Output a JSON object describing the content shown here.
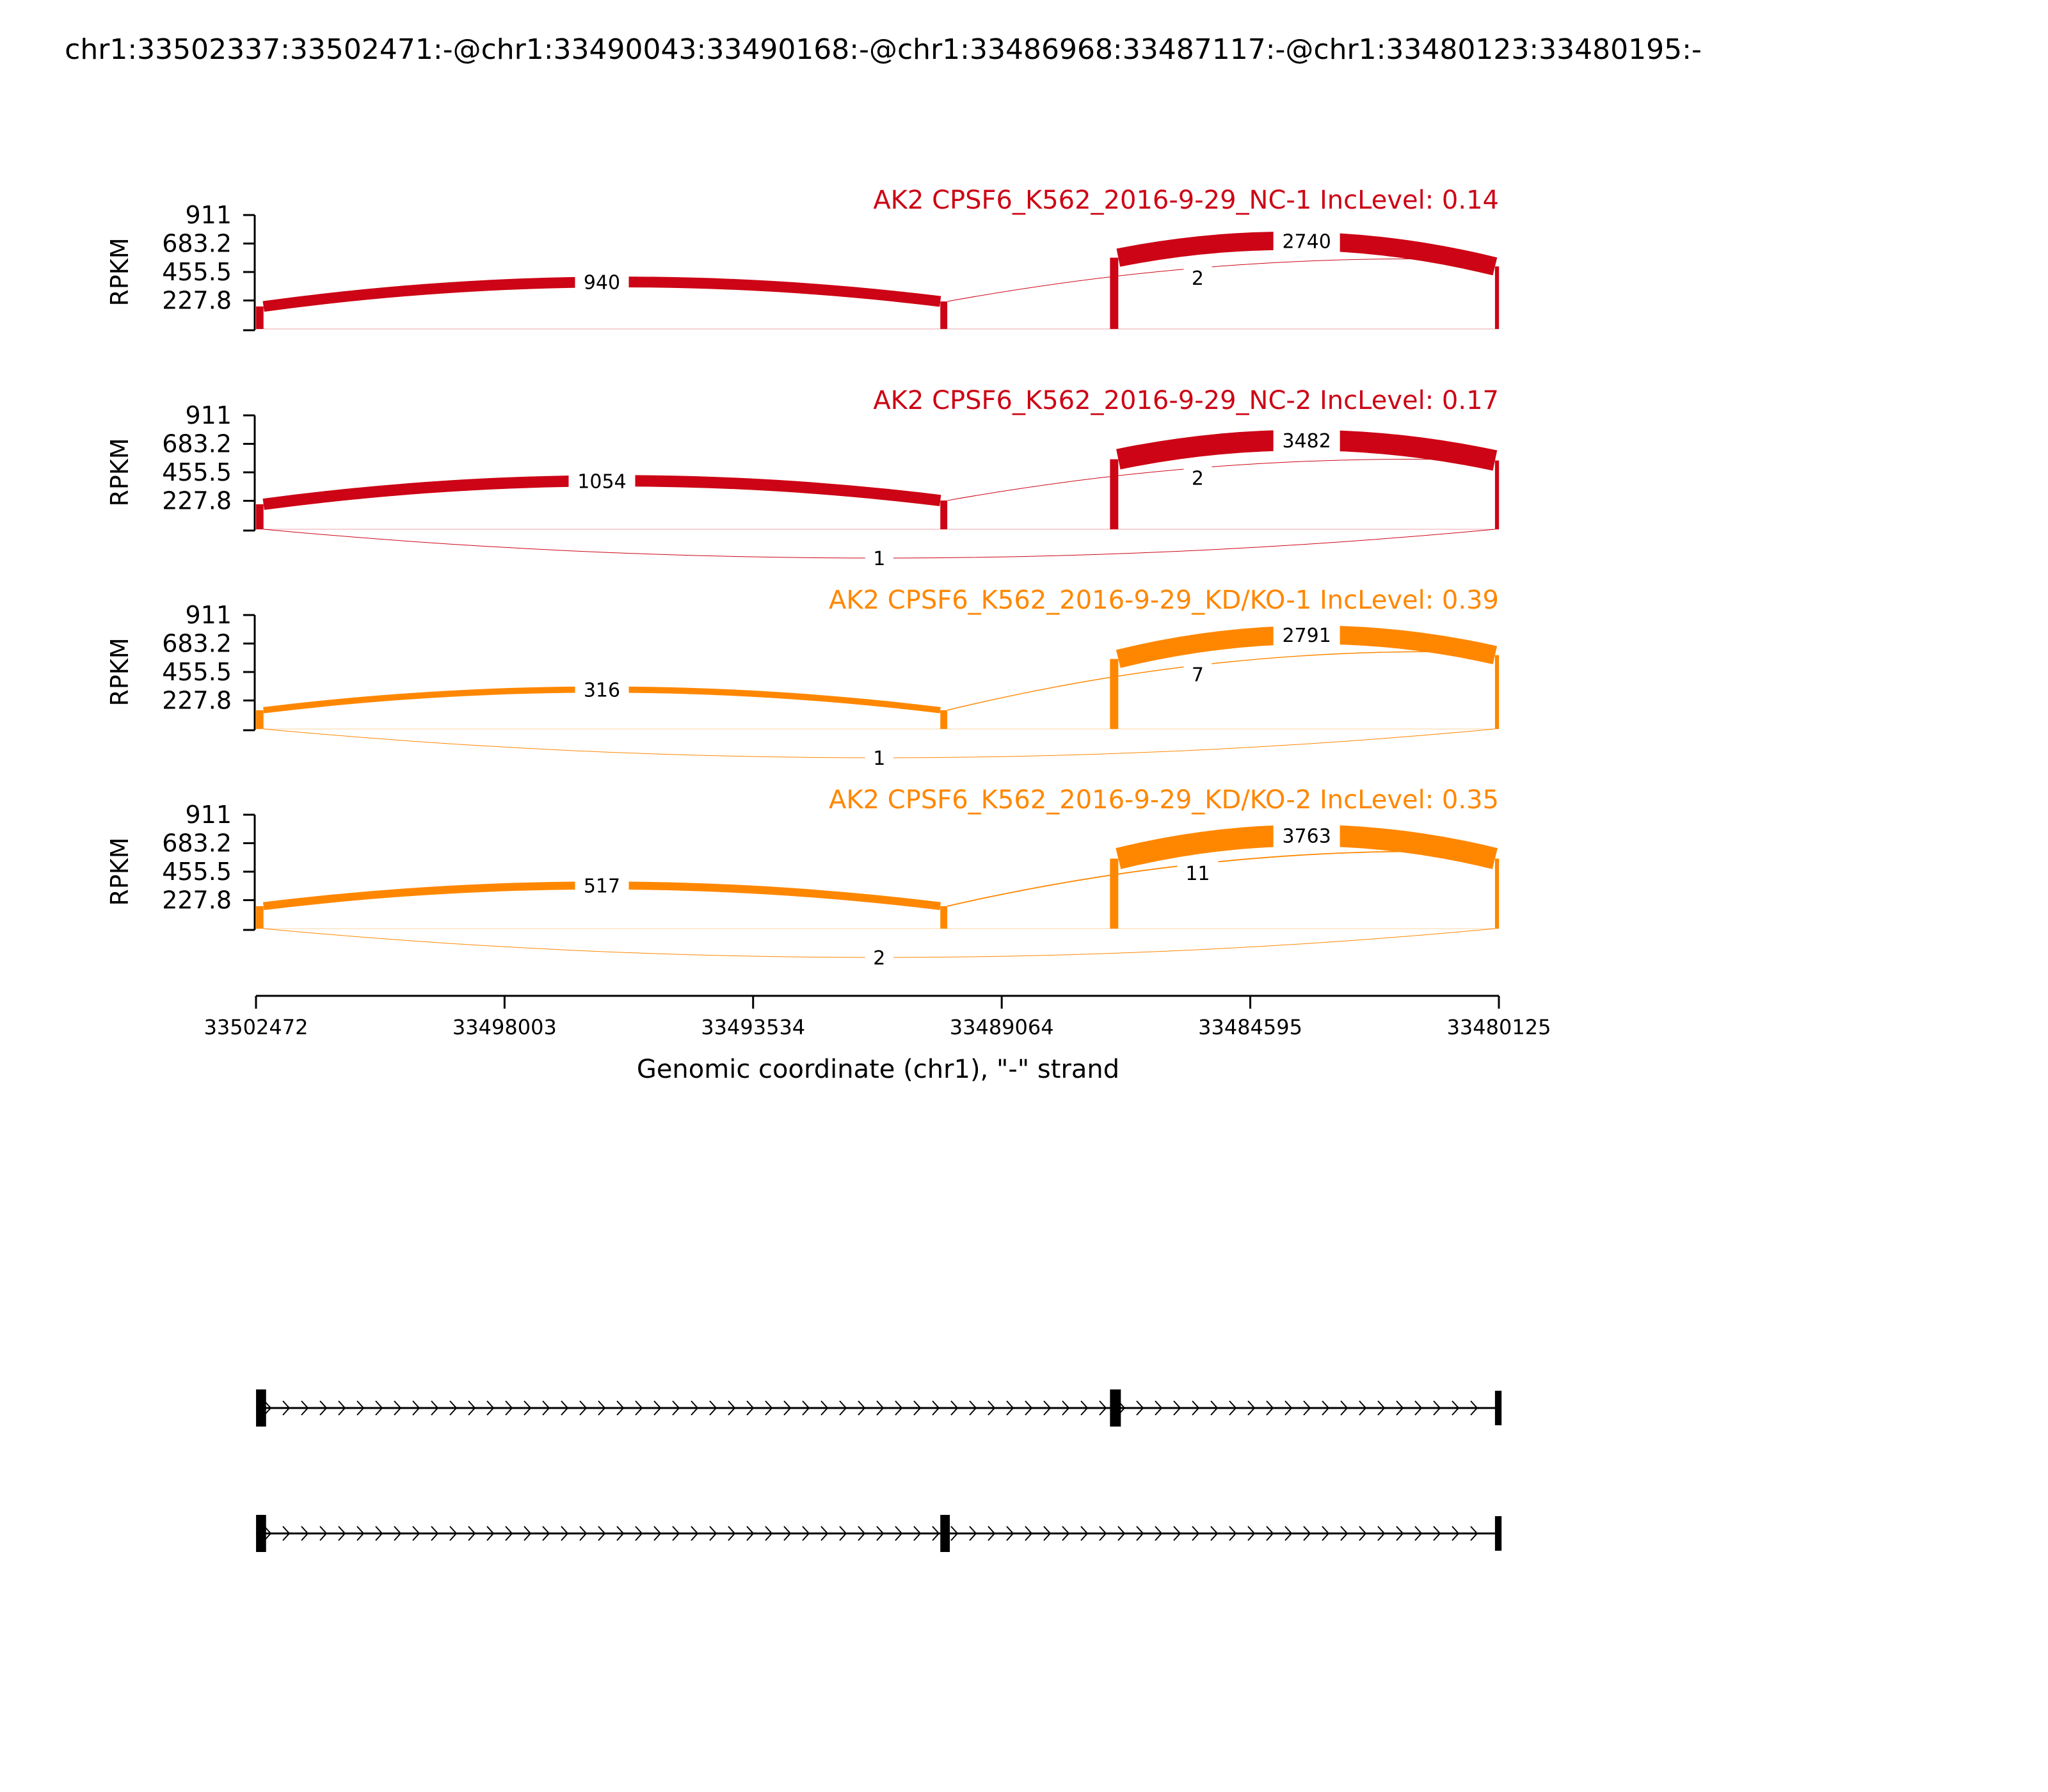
{
  "page_title": "chr1:33502337:33502471:-@chr1:33490043:33490168:-@chr1:33486968:33487117:-@chr1:33480123:33480195:-",
  "colors": {
    "nc": "#cc0415",
    "kd": "#ff8700",
    "axis": "#000000"
  },
  "chart_data": {
    "type": "area",
    "title": "chr1:33502337:33502471:-@chr1:33490043:33490168:-@chr1:33486968:33487117:-@chr1:33480123:33480195:-",
    "xlabel": "Genomic coordinate (chr1), \"-\" strand",
    "ylabel": "RPKM",
    "x_range": [
      33502472,
      33480125
    ],
    "x_ticks": [
      "33502472",
      "33498003",
      "33493534",
      "33489064",
      "33484595",
      "33480125"
    ],
    "y_range": [
      0,
      911
    ],
    "y_ticks": [
      "911",
      "683.2",
      "455.5",
      "227.8"
    ],
    "exons": [
      {
        "start": 33502471,
        "end": 33502337
      },
      {
        "start": 33490168,
        "end": 33490043
      },
      {
        "start": 33487117,
        "end": 33486968
      },
      {
        "start": 33480195,
        "end": 33480123
      }
    ],
    "panels": [
      {
        "label": "AK2 CPSF6_K562_2016-9-29_NC-1 IncLevel: 0.14",
        "color_group": "nc",
        "coverage": [
          180,
          220,
          570,
          640,
          500
        ],
        "junctions": [
          {
            "from": 33502337,
            "to": 33490168,
            "count": 940,
            "side": "top"
          },
          {
            "from": 33490043,
            "to": 33480195,
            "count": 2,
            "side": "top"
          },
          {
            "from": 33486968,
            "to": 33480195,
            "count": 2740,
            "side": "top"
          }
        ]
      },
      {
        "label": "AK2 CPSF6_K562_2016-9-29_NC-2 IncLevel: 0.17",
        "color_group": "nc",
        "coverage": [
          200,
          230,
          560,
          640,
          550
        ],
        "junctions": [
          {
            "from": 33502337,
            "to": 33490168,
            "count": 1054,
            "side": "top"
          },
          {
            "from": 33490043,
            "to": 33480195,
            "count": 2,
            "side": "top"
          },
          {
            "from": 33486968,
            "to": 33480195,
            "count": 3482,
            "side": "top"
          },
          {
            "from": 33502337,
            "to": 33480195,
            "count": 1,
            "side": "bottom"
          }
        ]
      },
      {
        "label": "AK2 CPSF6_K562_2016-9-29_KD/KO-1 IncLevel: 0.39",
        "color_group": "kd",
        "coverage": [
          150,
          150,
          560,
          700,
          590
        ],
        "junctions": [
          {
            "from": 33502337,
            "to": 33490168,
            "count": 316,
            "side": "top"
          },
          {
            "from": 33490043,
            "to": 33480195,
            "count": 7,
            "side": "top"
          },
          {
            "from": 33486968,
            "to": 33480195,
            "count": 2791,
            "side": "top"
          },
          {
            "from": 33502337,
            "to": 33480195,
            "count": 1,
            "side": "bottom"
          }
        ]
      },
      {
        "label": "AK2 CPSF6_K562_2016-9-29_KD/KO-2 IncLevel: 0.35",
        "color_group": "kd",
        "coverage": [
          180,
          180,
          560,
          700,
          560
        ],
        "junctions": [
          {
            "from": 33502337,
            "to": 33490168,
            "count": 517,
            "side": "top"
          },
          {
            "from": 33490043,
            "to": 33480195,
            "count": 11,
            "side": "top"
          },
          {
            "from": 33486968,
            "to": 33480195,
            "count": 3763,
            "side": "top"
          },
          {
            "from": 33502337,
            "to": 33480195,
            "count": 2,
            "side": "bottom"
          }
        ]
      }
    ],
    "isoforms": [
      {
        "exons": [
          [
            33502471,
            33502337
          ],
          [
            33486968,
            33487117
          ],
          [
            33480195,
            33480123
          ]
        ]
      },
      {
        "exons": [
          [
            33502471,
            33502337
          ],
          [
            33490043,
            33490168
          ],
          [
            33480195,
            33480123
          ]
        ]
      }
    ]
  }
}
